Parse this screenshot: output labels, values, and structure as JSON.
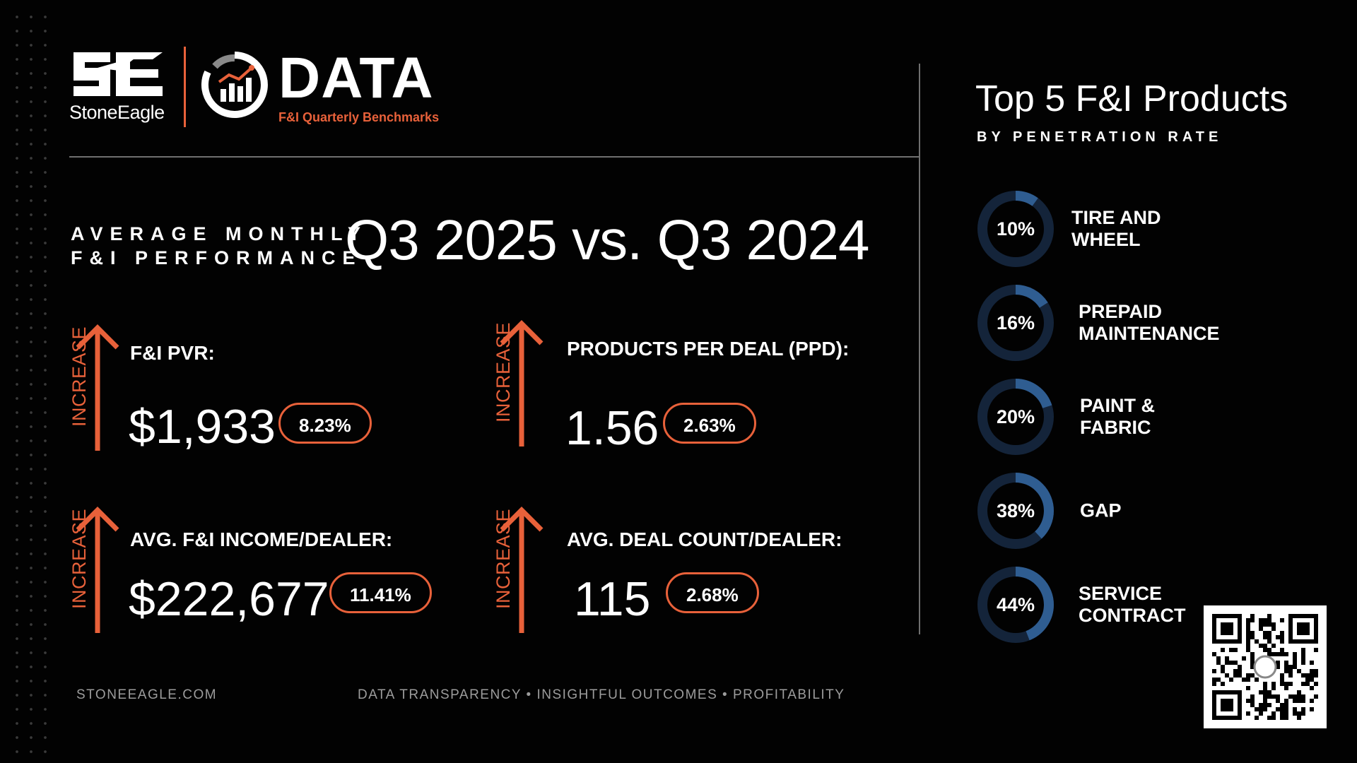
{
  "brand": {
    "name": "StoneEagle",
    "logo_mark": "SE",
    "data_word": "DATA",
    "data_subtitle": "F&I Quarterly Benchmarks"
  },
  "headline": {
    "small_line1": "AVERAGE MONTHLY",
    "small_line2": "F&I PERFORMANCE",
    "big": "Q3 2025 vs. Q3 2024"
  },
  "metrics": [
    {
      "direction": "INCREASE",
      "label": "F&I PVR:",
      "value": "$1,933",
      "change": "8.23%"
    },
    {
      "direction": "INCREASE",
      "label": "PRODUCTS PER DEAL (PPD):",
      "value": "1.56",
      "change": "2.63%"
    },
    {
      "direction": "INCREASE",
      "label": "AVG. F&I INCOME/DEALER:",
      "value": "$222,677",
      "change": "11.41%"
    },
    {
      "direction": "INCREASE",
      "label": "AVG. DEAL COUNT/DEALER:",
      "value": "115",
      "change": "2.68%"
    }
  ],
  "top_products": {
    "title": "Top 5 F&I Products",
    "subtitle": "BY PENETRATION RATE",
    "items": [
      {
        "pct": "10%",
        "value": 0.1,
        "name_line1": "TIRE AND",
        "name_line2": "WHEEL"
      },
      {
        "pct": "16%",
        "value": 0.16,
        "name_line1": "PREPAID",
        "name_line2": "MAINTENANCE"
      },
      {
        "pct": "20%",
        "value": 0.2,
        "name_line1": "PAINT &",
        "name_line2": "FABRIC"
      },
      {
        "pct": "38%",
        "value": 0.38,
        "name_line1": "GAP",
        "name_line2": ""
      },
      {
        "pct": "44%",
        "value": 0.44,
        "name_line1": "SERVICE",
        "name_line2": "CONTRACT"
      }
    ]
  },
  "footer": {
    "website": "STONEEAGLE.COM",
    "tagline": "DATA TRANSPARENCY • INSIGHTFUL OUTCOMES • PROFITABILITY"
  },
  "colors": {
    "accent": "#e8613a",
    "ring_track": "#14243a",
    "ring_fill": "#2f5d91",
    "background": "#020202"
  },
  "icons": {
    "arrow": "up-arrow-icon",
    "qr": "qr-code-icon"
  }
}
